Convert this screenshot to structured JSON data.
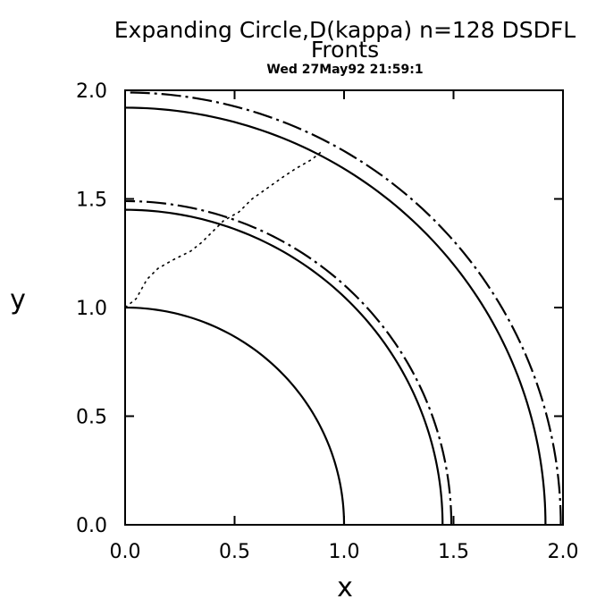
{
  "chart_data": {
    "type": "line",
    "title": "Expanding Circle,D(kappa)  n=128 DSDFL",
    "subtitle": "Fronts",
    "timestamp": "Wed 27May92 21:59:1",
    "xlabel": "x",
    "ylabel": "y",
    "xlim": [
      0.0,
      2.0
    ],
    "ylim": [
      0.0,
      2.0
    ],
    "xticks": [
      "0.0",
      "0.5",
      "1.0",
      "1.5",
      "2.0"
    ],
    "yticks": [
      "0.0",
      "0.5",
      "1.0",
      "1.5",
      "2.0"
    ],
    "grid": false,
    "series": [
      {
        "style": "solid",
        "kind": "quarter-circle",
        "radius": 1.0
      },
      {
        "style": "solid",
        "kind": "quarter-circle",
        "radius": 1.45
      },
      {
        "style": "dash-dot",
        "kind": "quarter-circle",
        "radius": 1.49
      },
      {
        "style": "solid",
        "kind": "quarter-circle",
        "radius": 1.92
      },
      {
        "style": "dash-dot",
        "kind": "quarter-circle",
        "radius": 1.99
      },
      {
        "style": "dotted",
        "kind": "path",
        "points": [
          [
            0.0,
            1.0
          ],
          [
            0.05,
            1.04
          ],
          [
            0.1,
            1.13
          ],
          [
            0.15,
            1.18
          ],
          [
            0.22,
            1.22
          ],
          [
            0.3,
            1.26
          ],
          [
            0.35,
            1.3
          ],
          [
            0.4,
            1.35
          ],
          [
            0.45,
            1.4
          ],
          [
            0.52,
            1.44
          ],
          [
            0.58,
            1.5
          ],
          [
            0.65,
            1.55
          ],
          [
            0.72,
            1.6
          ],
          [
            0.78,
            1.64
          ],
          [
            0.85,
            1.68
          ],
          [
            0.9,
            1.72
          ]
        ]
      }
    ]
  }
}
